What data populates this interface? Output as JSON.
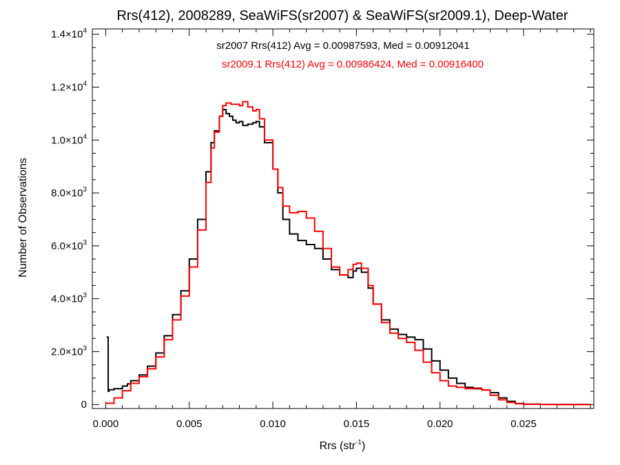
{
  "chart_data": {
    "type": "line",
    "title": "Rrs(412), 2008289, SeaWiFS(sr2007) & SeaWiFS(sr2009.1), Deep-Water",
    "xlabel": {
      "base": "Rrs (str",
      "sup": "-1",
      "close": ")"
    },
    "ylabel": "Number of Observations",
    "xlim": [
      -0.0008,
      0.0292
    ],
    "ylim": [
      -150,
      14200
    ],
    "x_ticks": [
      {
        "value": 0.0,
        "label": "0.000"
      },
      {
        "value": 0.005,
        "label": "0.005"
      },
      {
        "value": 0.01,
        "label": "0.010"
      },
      {
        "value": 0.015,
        "label": "0.015"
      },
      {
        "value": 0.02,
        "label": "0.020"
      },
      {
        "value": 0.025,
        "label": "0.025"
      }
    ],
    "y_ticks": [
      {
        "value": 0,
        "mant": "0",
        "exp": ""
      },
      {
        "value": 2000,
        "mant": "2.0×10",
        "exp": "3"
      },
      {
        "value": 4000,
        "mant": "4.0×10",
        "exp": "3"
      },
      {
        "value": 6000,
        "mant": "6.0×10",
        "exp": "3"
      },
      {
        "value": 8000,
        "mant": "8.0×10",
        "exp": "3"
      },
      {
        "value": 10000,
        "mant": "1.0×10",
        "exp": "4"
      },
      {
        "value": 12000,
        "mant": "1.2×10",
        "exp": "4"
      },
      {
        "value": 14000,
        "mant": "1.4×10",
        "exp": "4"
      }
    ],
    "annotations": [
      {
        "text": "sr2007 Rrs(412) Avg = 0.00987593, Med = 0.00912041",
        "color": "#000000"
      },
      {
        "text": "sr2009.1 Rrs(412) Avg = 0.00986424, Med = 0.00916400",
        "color": "#ff0000"
      }
    ],
    "series": [
      {
        "color": "#000000",
        "points": [
          [
            5e-05,
            2550
          ],
          [
            0.0001,
            2550
          ],
          [
            0.00015,
            500
          ],
          [
            0.0002,
            560
          ],
          [
            0.0005,
            600
          ],
          [
            0.001,
            700
          ],
          [
            0.0013,
            780
          ],
          [
            0.0015,
            900
          ],
          [
            0.002,
            1120
          ],
          [
            0.0025,
            1450
          ],
          [
            0.003,
            1950
          ],
          [
            0.0035,
            2600
          ],
          [
            0.004,
            3400
          ],
          [
            0.0045,
            4300
          ],
          [
            0.005,
            5500
          ],
          [
            0.0055,
            7000
          ],
          [
            0.006,
            8800
          ],
          [
            0.0063,
            9900
          ],
          [
            0.0065,
            10350
          ],
          [
            0.0068,
            10900
          ],
          [
            0.007,
            11150
          ],
          [
            0.0072,
            11000
          ],
          [
            0.0074,
            10900
          ],
          [
            0.0076,
            10750
          ],
          [
            0.0078,
            10650
          ],
          [
            0.008,
            10700
          ],
          [
            0.0082,
            10550
          ],
          [
            0.0085,
            10600
          ],
          [
            0.0088,
            10650
          ],
          [
            0.009,
            10700
          ],
          [
            0.0092,
            10500
          ],
          [
            0.0095,
            9900
          ],
          [
            0.01,
            8900
          ],
          [
            0.0103,
            8000
          ],
          [
            0.0106,
            7000
          ],
          [
            0.011,
            6450
          ],
          [
            0.0115,
            6200
          ],
          [
            0.012,
            6050
          ],
          [
            0.0125,
            5900
          ],
          [
            0.013,
            5500
          ],
          [
            0.0135,
            5100
          ],
          [
            0.014,
            4900
          ],
          [
            0.0145,
            4800
          ],
          [
            0.0148,
            5050
          ],
          [
            0.015,
            5150
          ],
          [
            0.0153,
            5000
          ],
          [
            0.0157,
            4400
          ],
          [
            0.016,
            3800
          ],
          [
            0.0165,
            3200
          ],
          [
            0.017,
            2850
          ],
          [
            0.0175,
            2650
          ],
          [
            0.018,
            2550
          ],
          [
            0.0185,
            2450
          ],
          [
            0.019,
            2100
          ],
          [
            0.0195,
            1650
          ],
          [
            0.02,
            1300
          ],
          [
            0.0205,
            1000
          ],
          [
            0.021,
            800
          ],
          [
            0.0215,
            650
          ],
          [
            0.022,
            600
          ],
          [
            0.0225,
            550
          ],
          [
            0.023,
            450
          ],
          [
            0.0235,
            250
          ],
          [
            0.024,
            120
          ],
          [
            0.0245,
            40
          ],
          [
            0.025,
            15
          ],
          [
            0.026,
            5
          ],
          [
            0.027,
            2
          ],
          [
            0.029,
            0
          ]
        ]
      },
      {
        "color": "#ff0000",
        "points": [
          [
            0.0,
            50
          ],
          [
            0.0005,
            250
          ],
          [
            0.001,
            520
          ],
          [
            0.0015,
            800
          ],
          [
            0.002,
            1050
          ],
          [
            0.0025,
            1350
          ],
          [
            0.003,
            1800
          ],
          [
            0.0035,
            2450
          ],
          [
            0.004,
            3200
          ],
          [
            0.0045,
            4100
          ],
          [
            0.005,
            5200
          ],
          [
            0.0055,
            6600
          ],
          [
            0.006,
            8400
          ],
          [
            0.0063,
            9700
          ],
          [
            0.0065,
            10300
          ],
          [
            0.0068,
            10900
          ],
          [
            0.007,
            11300
          ],
          [
            0.0072,
            11400
          ],
          [
            0.0075,
            11350
          ],
          [
            0.0078,
            11350
          ],
          [
            0.008,
            11300
          ],
          [
            0.0082,
            11450
          ],
          [
            0.0085,
            11250
          ],
          [
            0.0088,
            11100
          ],
          [
            0.009,
            11150
          ],
          [
            0.0092,
            10800
          ],
          [
            0.0095,
            10000
          ],
          [
            0.01,
            8900
          ],
          [
            0.0103,
            8200
          ],
          [
            0.0106,
            7500
          ],
          [
            0.011,
            7250
          ],
          [
            0.0115,
            7300
          ],
          [
            0.012,
            7050
          ],
          [
            0.0125,
            6550
          ],
          [
            0.013,
            5900
          ],
          [
            0.0135,
            5200
          ],
          [
            0.014,
            4900
          ],
          [
            0.0145,
            5100
          ],
          [
            0.0148,
            5300
          ],
          [
            0.015,
            5350
          ],
          [
            0.0153,
            5150
          ],
          [
            0.0157,
            4500
          ],
          [
            0.016,
            3800
          ],
          [
            0.0165,
            3100
          ],
          [
            0.017,
            2700
          ],
          [
            0.0175,
            2500
          ],
          [
            0.018,
            2350
          ],
          [
            0.0185,
            2050
          ],
          [
            0.019,
            1600
          ],
          [
            0.0195,
            1200
          ],
          [
            0.02,
            900
          ],
          [
            0.0205,
            700
          ],
          [
            0.021,
            650
          ],
          [
            0.0215,
            600
          ],
          [
            0.022,
            620
          ],
          [
            0.0225,
            550
          ],
          [
            0.023,
            350
          ],
          [
            0.0235,
            180
          ],
          [
            0.024,
            80
          ],
          [
            0.0245,
            30
          ],
          [
            0.025,
            10
          ],
          [
            0.026,
            3
          ],
          [
            0.027,
            1
          ],
          [
            0.029,
            0
          ]
        ]
      }
    ]
  }
}
